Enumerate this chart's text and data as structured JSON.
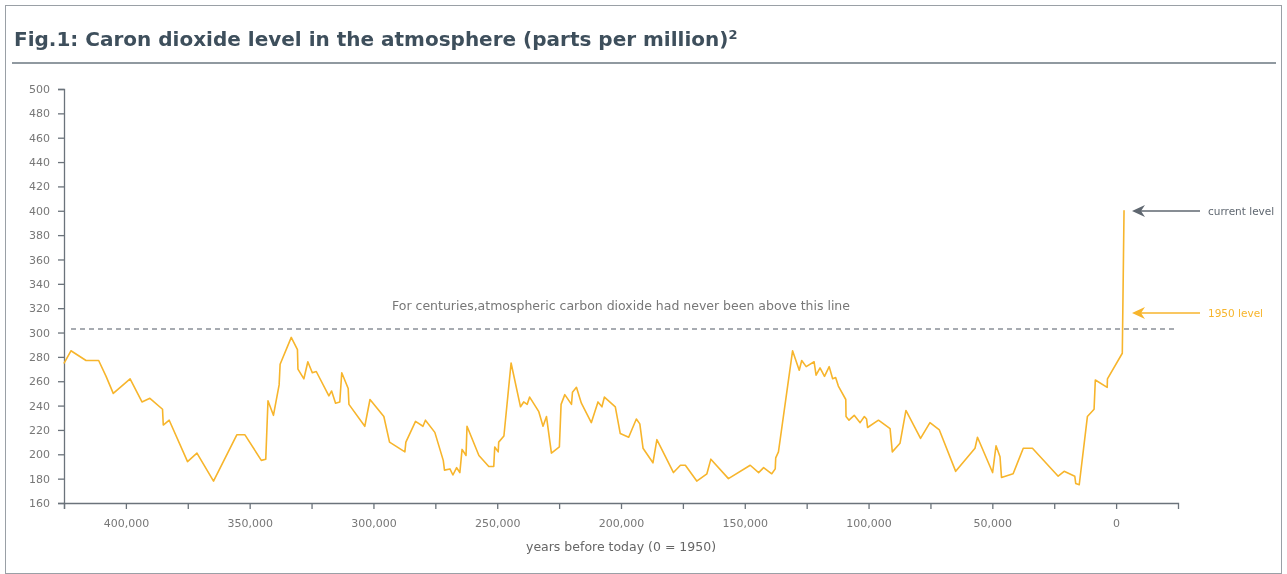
{
  "chart_data": {
    "type": "line",
    "title": "Fig.1: Caron dioxide level in the atmosphere (parts per million)$^{2}$",
    "xlabel": "years before today (0 = 1950)",
    "x": [
      424900,
      422200,
      416100,
      411000,
      408000,
      405100,
      398300,
      393500,
      390300,
      385200,
      384900,
      382500,
      375100,
      371300,
      364600,
      355200,
      351900,
      345300,
      343500,
      342600,
      340400,
      338100,
      337700,
      333200,
      330700,
      330500,
      328100,
      326500,
      324700,
      323100,
      318000,
      316900,
      315300,
      313600,
      312800,
      310200,
      309900,
      303500,
      301400,
      295800,
      293500,
      287300,
      286900,
      283000,
      280000,
      279000,
      275200,
      271800,
      271300,
      269100,
      267900,
      266400,
      265100,
      264200,
      262600,
      262200,
      257400,
      253400,
      251400,
      251000,
      249600,
      249400,
      247300,
      244400,
      240600,
      239300,
      237900,
      236900,
      233200,
      231500,
      230100,
      228100,
      224900,
      224200,
      222700,
      220000,
      219600,
      218000,
      216000,
      212000,
      209300,
      207700,
      206700,
      202300,
      200300,
      196900,
      193800,
      192400,
      191100,
      187100,
      185500,
      178800,
      176000,
      174000,
      169400,
      165300,
      163700,
      156600,
      147800,
      144400,
      142400,
      139100,
      137700,
      137500,
      136400,
      130700,
      128000,
      127000,
      125200,
      122000,
      121200,
      119600,
      117800,
      115900,
      114500,
      113300,
      112200,
      109200,
      109100,
      107900,
      105800,
      103400,
      101700,
      100800,
      100400,
      96000,
      91300,
      90400,
      87300,
      84900,
      79000,
      75200,
      71400,
      64800,
      57000,
      56000,
      49900,
      48500,
      46900,
      46300,
      41600,
      37500,
      33800,
      23400,
      21000,
      16700,
      16300,
      14900,
      11600,
      8900,
      8400,
      3600,
      3500,
      -2500,
      -3200
    ],
    "series": [
      {
        "color": "#f7b52c",
        "values": [
          275,
          285,
          277,
          277,
          264,
          250,
          262,
          243,
          246,
          237,
          224,
          228,
          194,
          201,
          178,
          216,
          216,
          195,
          196,
          244,
          232,
          257,
          274,
          296,
          286,
          270,
          262,
          276,
          267,
          268,
          248,
          252,
          242,
          243,
          267,
          254,
          241,
          223,
          245,
          231,
          210,
          202,
          210,
          227,
          223,
          228,
          218,
          195,
          187,
          188,
          183,
          189,
          185,
          204,
          199,
          223,
          199,
          190,
          190,
          206,
          202,
          210,
          215,
          275,
          239,
          243,
          241,
          247,
          235,
          223,
          231,
          201,
          206,
          241,
          249,
          241,
          251,
          255,
          242,
          226,
          243,
          239,
          247,
          239,
          217,
          214,
          229,
          225,
          205,
          193,
          212,
          185,
          191,
          191,
          178,
          184,
          196,
          180,
          191,
          185,
          189,
          184,
          188,
          197,
          202,
          285,
          269,
          277,
          272,
          276,
          265,
          271,
          264,
          272,
          262,
          263,
          256,
          245,
          231,
          228,
          232,
          226,
          231,
          229,
          222,
          228,
          221,
          202,
          209,
          236,
          213,
          226,
          220,
          186,
          205,
          214,
          185,
          207,
          198,
          181,
          184,
          205,
          205,
          182,
          186,
          182,
          176,
          175,
          231,
          237,
          261,
          255,
          262,
          283,
          400
        ]
      }
    ],
    "xlim": [
      425000,
      -25000
    ],
    "xticks": [
      {
        "value": 425000,
        "label": null
      },
      {
        "value": 400000,
        "label": "400,000"
      },
      {
        "value": 375000,
        "label": null
      },
      {
        "value": 350000,
        "label": "350,000"
      },
      {
        "value": 325000,
        "label": null
      },
      {
        "value": 300000,
        "label": "300,000"
      },
      {
        "value": 275000,
        "label": null
      },
      {
        "value": 250000,
        "label": "250,000"
      },
      {
        "value": 225000,
        "label": null
      },
      {
        "value": 200000,
        "label": "200,000"
      },
      {
        "value": 175000,
        "label": null
      },
      {
        "value": 150000,
        "label": "150,000"
      },
      {
        "value": 125000,
        "label": null
      },
      {
        "value": 100000,
        "label": "100,000"
      },
      {
        "value": 75000,
        "label": null
      },
      {
        "value": 50000,
        "label": "50,000"
      },
      {
        "value": 25000,
        "label": null
      },
      {
        "value": 0,
        "label": "0"
      }
    ],
    "ylim": [
      160,
      500
    ],
    "yticks": [
      160,
      180,
      200,
      220,
      240,
      260,
      280,
      300,
      320,
      340,
      360,
      380,
      400,
      420,
      440,
      460,
      480,
      500
    ],
    "ref_lines": [
      {
        "axis": "y",
        "value": 303,
        "label": "For centuries,atmospheric carbon dioxide had never been above this line",
        "color": "#8a9098",
        "line_style": "dashed"
      }
    ],
    "annotations": [
      "current level",
      "1950 level"
    ],
    "line_style": "solid",
    "marker": "none",
    "grid": false
  }
}
